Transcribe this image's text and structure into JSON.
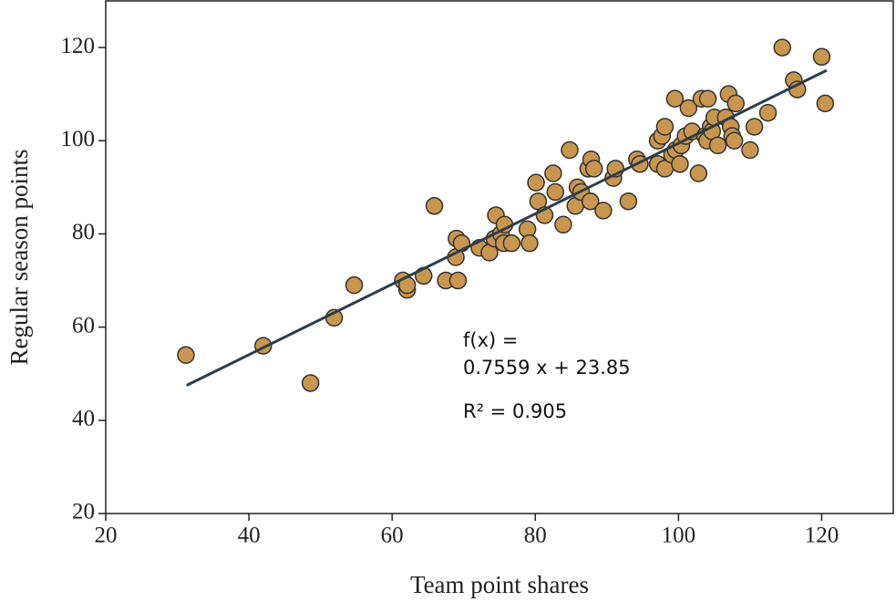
{
  "chart_data": {
    "type": "scatter",
    "xlabel": "Team point shares",
    "ylabel": "Regular season points",
    "xlim": [
      20,
      130
    ],
    "ylim": [
      20,
      130
    ],
    "xticks": [
      20,
      40,
      60,
      80,
      100,
      120
    ],
    "yticks": [
      20,
      40,
      60,
      80,
      100,
      120
    ],
    "color": "#c8964e",
    "edgecolor": "#333333",
    "x": [
      31.2,
      42,
      48.6,
      51.9,
      54.7,
      61.5,
      62.1,
      62.1,
      64.4,
      65.9,
      67.5,
      69.2,
      68.9,
      69,
      69.7,
      72.2,
      73.6,
      74.3,
      74.5,
      75.2,
      75.7,
      75.6,
      76.7,
      78.9,
      79.2,
      80.1,
      80.4,
      81.3,
      82.5,
      82.8,
      83.9,
      84.8,
      85.6,
      85.9,
      86.4,
      87.4,
      87.7,
      87.8,
      88.2,
      89.5,
      90.9,
      91.2,
      93,
      94.2,
      94.6,
      97.1,
      97.1,
      97.7,
      98.1,
      98.1,
      99.1,
      99.5,
      99.6,
      100.2,
      100.4,
      101,
      101.4,
      101.9,
      102.8,
      103.2,
      103.7,
      104,
      104.1,
      104.5,
      104.7,
      105,
      105.5,
      106.6,
      107,
      107.3,
      107.5,
      107.8,
      108,
      110,
      110.6,
      112.5,
      114.5,
      116.1,
      116.6,
      120,
      120.5
    ],
    "values": [
      54,
      56,
      48,
      62,
      69,
      70,
      68,
      69,
      71,
      86,
      70,
      70,
      75,
      79,
      78,
      77,
      76,
      79,
      84,
      80,
      82,
      78,
      78,
      81,
      78,
      91,
      87,
      84,
      93,
      89,
      82,
      98,
      86,
      90,
      89,
      94,
      87,
      96,
      94,
      85,
      92,
      94,
      87,
      96,
      95,
      100,
      95,
      101,
      103,
      94,
      97,
      109,
      98,
      95,
      99,
      101,
      107,
      102,
      93,
      109,
      101,
      100,
      109,
      103,
      102,
      105,
      99,
      105,
      110,
      103,
      101,
      100,
      108,
      98,
      103,
      106,
      120,
      113,
      111,
      118,
      108
    ],
    "fit": {
      "x": [
        31.3,
        120.7
      ],
      "values": [
        47.5,
        115.1
      ],
      "color": "#2d3e48"
    },
    "annotations": [
      "f(x) =",
      "0.7559 x + 23.85",
      "R² = 0.905"
    ]
  }
}
